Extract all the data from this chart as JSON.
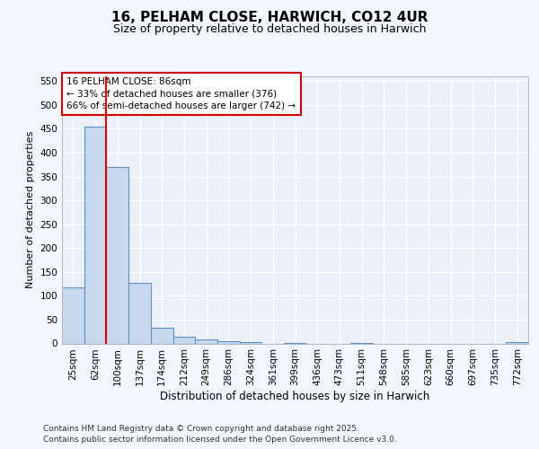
{
  "title": "16, PELHAM CLOSE, HARWICH, CO12 4UR",
  "subtitle": "Size of property relative to detached houses in Harwich",
  "xlabel": "Distribution of detached houses by size in Harwich",
  "ylabel": "Number of detached properties",
  "categories": [
    "25sqm",
    "62sqm",
    "100sqm",
    "137sqm",
    "174sqm",
    "212sqm",
    "249sqm",
    "286sqm",
    "324sqm",
    "361sqm",
    "399sqm",
    "436sqm",
    "473sqm",
    "511sqm",
    "548sqm",
    "585sqm",
    "623sqm",
    "660sqm",
    "697sqm",
    "735sqm",
    "772sqm"
  ],
  "values": [
    118,
    455,
    370,
    127,
    33,
    15,
    8,
    5,
    2,
    0,
    1,
    0,
    0,
    1,
    0,
    0,
    0,
    0,
    0,
    0,
    2
  ],
  "bar_color": "#c8d8ee",
  "bar_edge_color": "#6090c0",
  "vline_x": 1.5,
  "vline_color": "#dd0000",
  "annotation_line1": "16 PELHAM CLOSE: 86sqm",
  "annotation_line2": "← 33% of detached houses are smaller (376)",
  "annotation_line3": "66% of semi-detached houses are larger (742) →",
  "annotation_box_color": "#ffffff",
  "annotation_box_edge": "#cc0000",
  "ylim": [
    0,
    560
  ],
  "yticks": [
    0,
    50,
    100,
    150,
    200,
    250,
    300,
    350,
    400,
    450,
    500,
    550
  ],
  "footer_line1": "Contains HM Land Registry data © Crown copyright and database right 2025.",
  "footer_line2": "Contains public sector information licensed under the Open Government Licence v3.0.",
  "background_color": "#f4f6ff",
  "plot_background": "#eaeff8",
  "grid_color": "#ffffff",
  "title_fontsize": 11,
  "subtitle_fontsize": 9,
  "footer_fontsize": 6.5,
  "ylabel_fontsize": 8,
  "xlabel_fontsize": 8.5
}
